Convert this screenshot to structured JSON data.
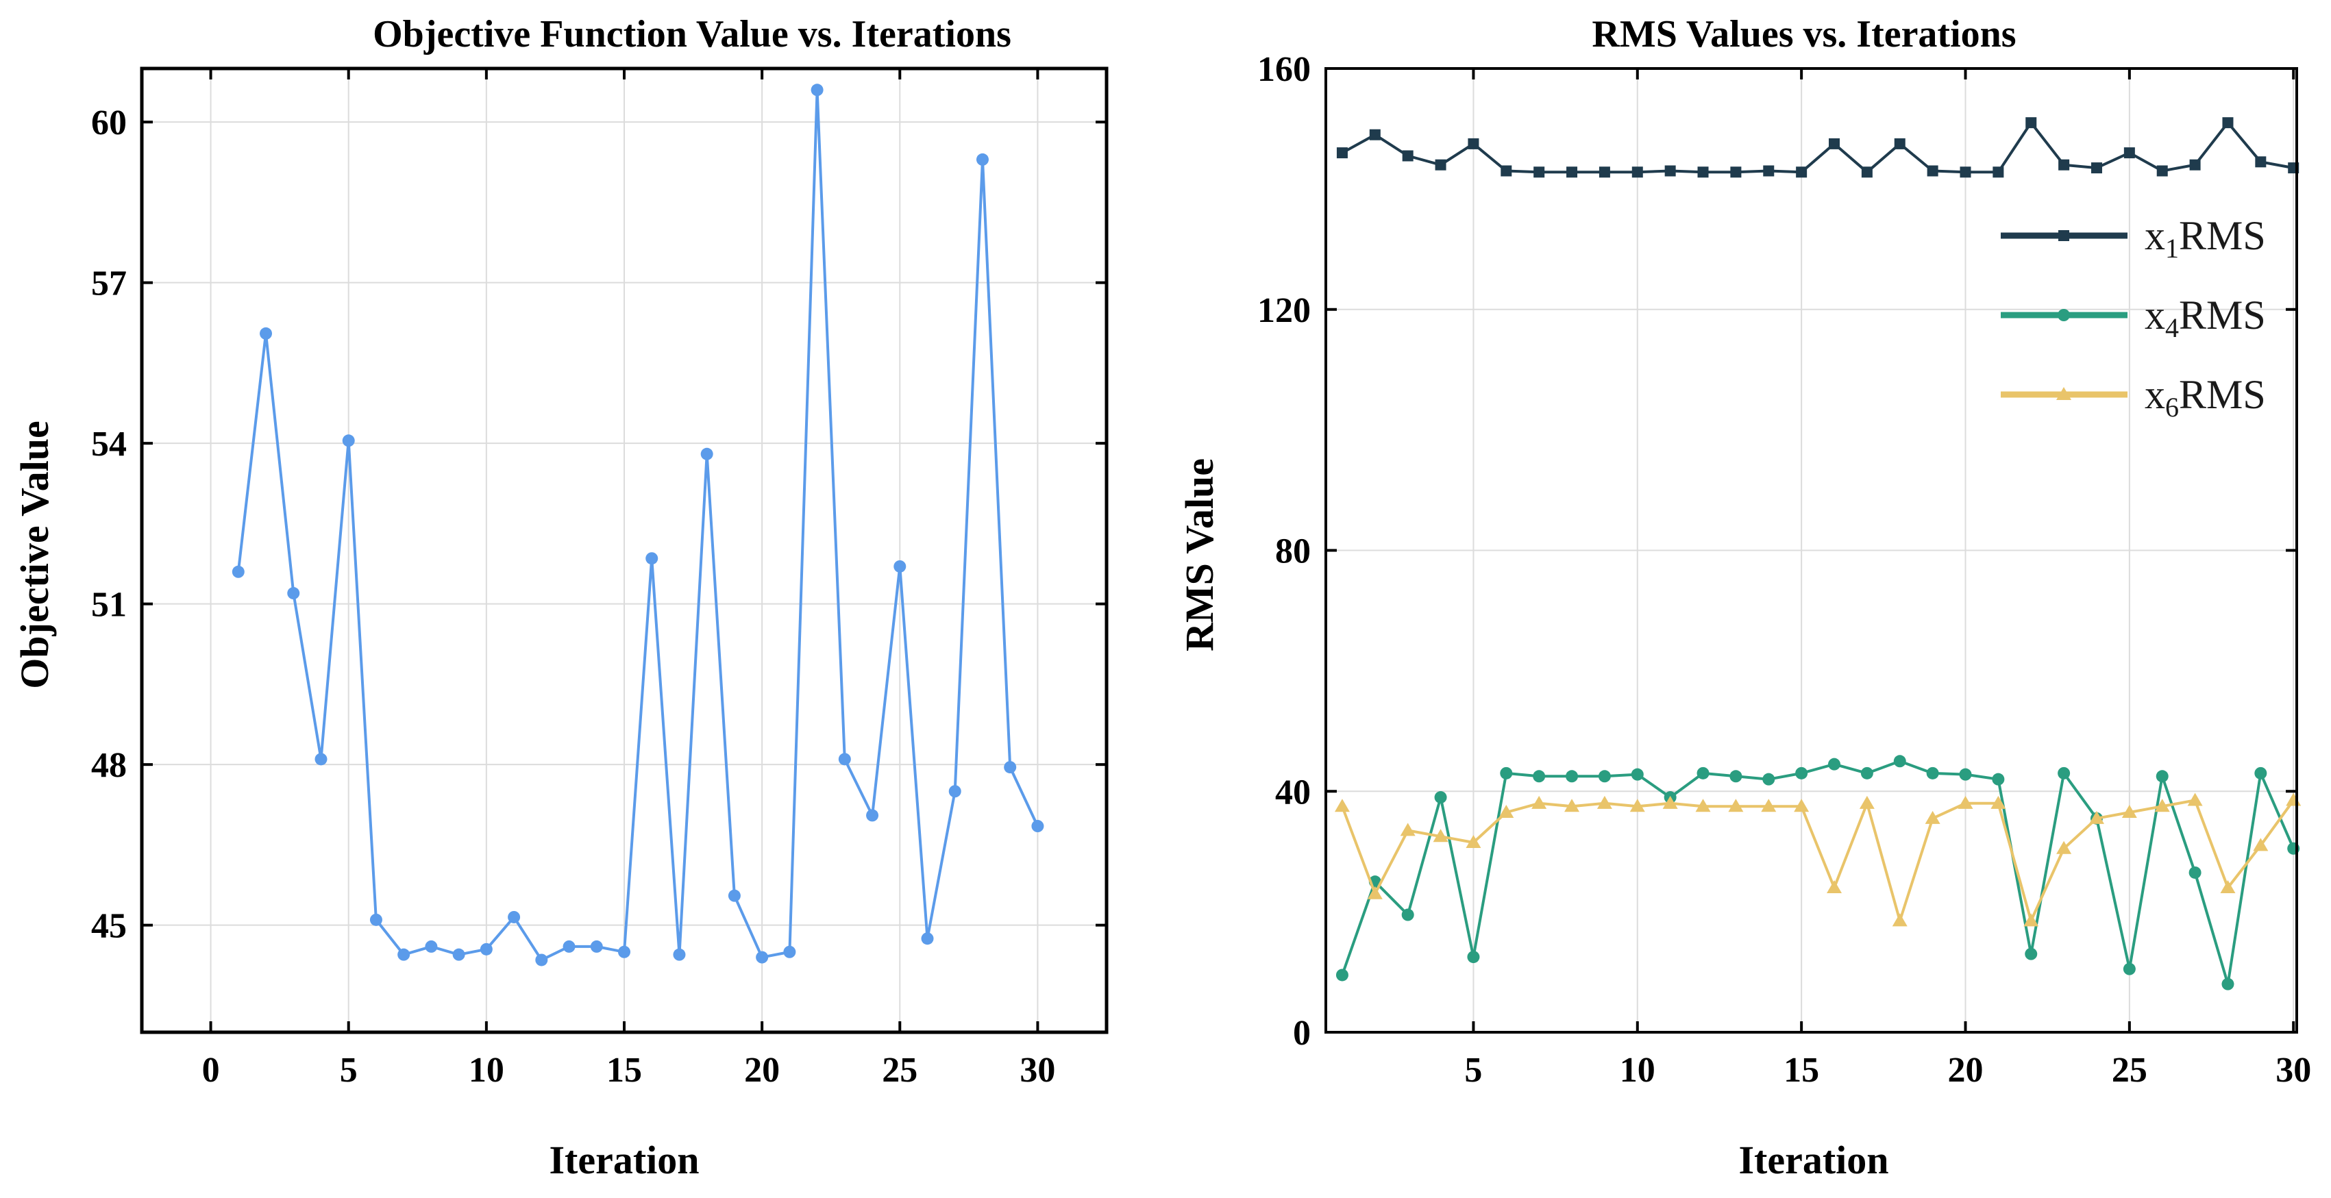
{
  "chart_data": [
    {
      "type": "line",
      "title": "Objective Function Value vs. Iterations",
      "xlabel": "Iteration",
      "ylabel": "Objective Value",
      "xlim": [
        -2.5,
        32.5
      ],
      "ylim": [
        43,
        61
      ],
      "xticks": [
        0,
        5,
        10,
        15,
        20,
        25,
        30
      ],
      "yticks": [
        45,
        48,
        51,
        54,
        57,
        60
      ],
      "grid": true,
      "series": [
        {
          "color": "#5b9bea",
          "marker": "circle",
          "x": [
            1,
            2,
            3,
            4,
            5,
            6,
            7,
            8,
            9,
            10,
            11,
            12,
            13,
            14,
            15,
            16,
            17,
            18,
            19,
            20,
            21,
            22,
            23,
            24,
            25,
            26,
            27,
            28,
            29,
            30
          ],
          "values": [
            51.6,
            56.05,
            51.2,
            48.1,
            54.05,
            45.1,
            44.45,
            44.6,
            44.45,
            44.55,
            45.15,
            44.35,
            44.6,
            44.6,
            44.5,
            51.85,
            44.45,
            53.8,
            45.55,
            44.4,
            44.5,
            60.6,
            48.1,
            47.05,
            51.7,
            44.75,
            47.5,
            59.3,
            47.95,
            46.85
          ]
        }
      ]
    },
    {
      "type": "line",
      "title": "RMS Values vs. Iterations",
      "xlabel": "Iteration",
      "ylabel": "RMS Value",
      "xlim": [
        0.5,
        30.1
      ],
      "ylim": [
        0,
        160
      ],
      "xticks": [
        5,
        10,
        15,
        20,
        25,
        30
      ],
      "yticks": [
        0,
        40,
        80,
        120,
        160
      ],
      "grid": true,
      "legend": "top-right",
      "series": [
        {
          "name_base": "x",
          "name_sub": "1",
          "name_suffix": "RMS",
          "color": "#1f3b4d",
          "marker": "square",
          "x": [
            1,
            2,
            3,
            4,
            5,
            6,
            7,
            8,
            9,
            10,
            11,
            12,
            13,
            14,
            15,
            16,
            17,
            18,
            19,
            20,
            21,
            22,
            23,
            24,
            25,
            26,
            27,
            28,
            29,
            30
          ],
          "values": [
            146,
            149,
            145.5,
            144,
            147.5,
            143,
            142.8,
            142.8,
            142.8,
            142.8,
            143,
            142.8,
            142.8,
            143,
            142.8,
            147.5,
            142.8,
            147.5,
            143,
            142.8,
            142.8,
            151,
            144,
            143.5,
            146,
            143,
            144,
            151,
            144.5,
            143.5
          ]
        },
        {
          "name_base": "x",
          "name_sub": "4",
          "name_suffix": "RMS",
          "color": "#2a9d80",
          "marker": "circle",
          "x": [
            1,
            2,
            3,
            4,
            5,
            6,
            7,
            8,
            9,
            10,
            11,
            12,
            13,
            14,
            15,
            16,
            17,
            18,
            19,
            20,
            21,
            22,
            23,
            24,
            25,
            26,
            27,
            28,
            29,
            30
          ],
          "values": [
            9.5,
            25,
            19.5,
            39,
            12.5,
            43,
            42.5,
            42.5,
            42.5,
            42.8,
            39,
            43,
            42.5,
            42,
            43,
            44.5,
            43,
            45,
            43,
            42.8,
            42,
            13,
            43,
            35.5,
            10.5,
            42.5,
            26.5,
            8,
            43,
            30.5
          ]
        },
        {
          "name_base": "x",
          "name_sub": "6",
          "name_suffix": "RMS",
          "color": "#e9c46a",
          "marker": "triangle",
          "x": [
            1,
            2,
            3,
            4,
            5,
            6,
            7,
            8,
            9,
            10,
            11,
            12,
            13,
            14,
            15,
            16,
            17,
            18,
            19,
            20,
            21,
            22,
            23,
            24,
            25,
            26,
            27,
            28,
            29,
            30
          ],
          "values": [
            37.5,
            23,
            33.5,
            32.5,
            31.5,
            36.5,
            38,
            37.5,
            38,
            37.5,
            38,
            37.5,
            37.5,
            37.5,
            37.5,
            24,
            38,
            18.5,
            35.5,
            38,
            38,
            18.5,
            30.5,
            35.5,
            36.5,
            37.5,
            38.5,
            24,
            31,
            38.5
          ]
        }
      ]
    }
  ]
}
